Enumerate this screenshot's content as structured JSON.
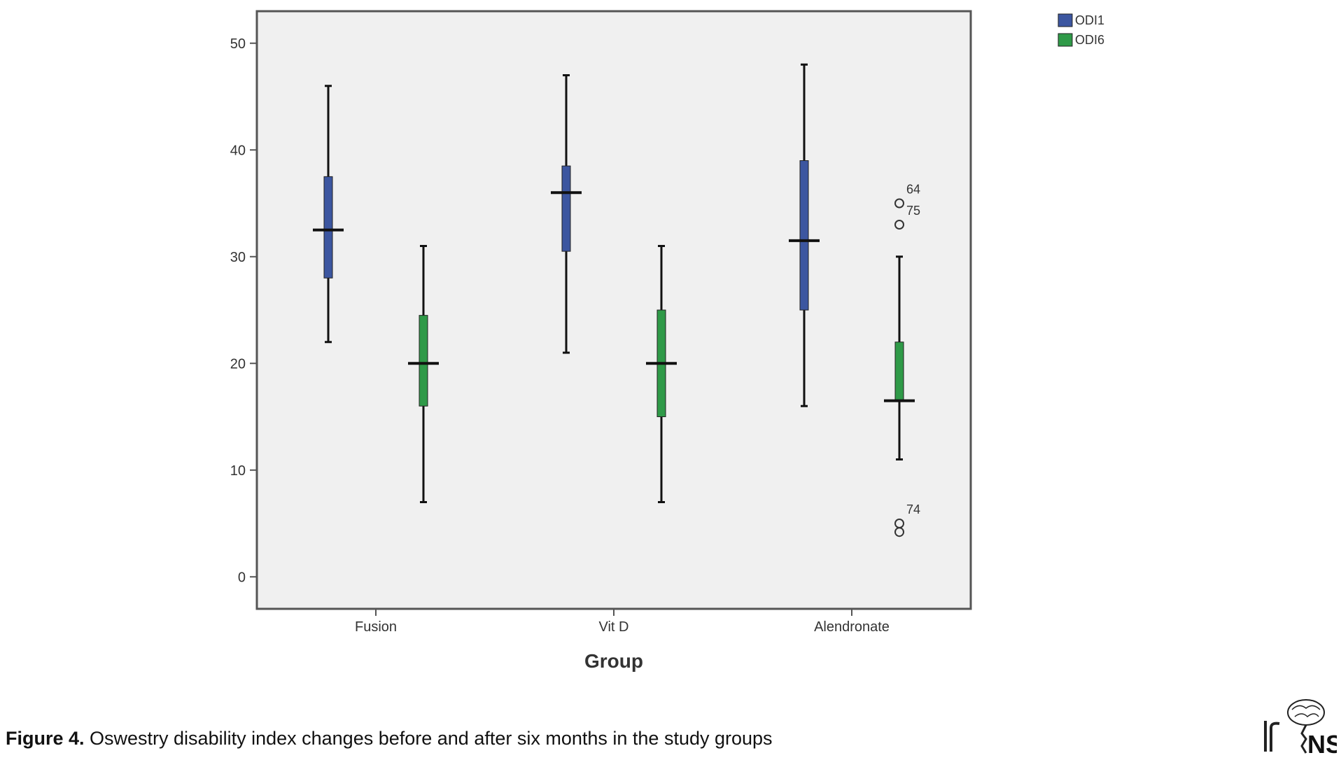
{
  "chart_data": {
    "type": "boxplot",
    "xlabel": "Group",
    "categories": [
      "Fusion",
      "Vit D",
      "Alendronate"
    ],
    "ylim": [
      -3,
      53
    ],
    "yticks": [
      0,
      10,
      20,
      30,
      40,
      50
    ],
    "grid": false,
    "legend_position": "top-right, outside plot",
    "series": [
      {
        "name": "ODI1",
        "color": "#3c56a0",
        "boxes": [
          {
            "min": 22,
            "q1": 28,
            "median": 32.5,
            "q3": 37.5,
            "max": 46
          },
          {
            "min": 21,
            "q1": 30.5,
            "median": 36,
            "q3": 38.5,
            "max": 47
          },
          {
            "min": 16,
            "q1": 25,
            "median": 31.5,
            "q3": 39,
            "max": 48
          }
        ]
      },
      {
        "name": "ODI6",
        "color": "#2f9a48",
        "boxes": [
          {
            "min": 7,
            "q1": 16,
            "median": 20,
            "q3": 24.5,
            "max": 31
          },
          {
            "min": 7,
            "q1": 15,
            "median": 20,
            "q3": 25,
            "max": 31
          },
          {
            "min": 11,
            "q1": 16.5,
            "median": 16.5,
            "q3": 22,
            "max": 30
          }
        ]
      }
    ],
    "outliers": [
      {
        "category": "Alendronate",
        "series": "ODI6",
        "value": 35,
        "label": "64"
      },
      {
        "category": "Alendronate",
        "series": "ODI6",
        "value": 33,
        "label": "75"
      },
      {
        "category": "Alendronate",
        "series": "ODI6",
        "value": 5,
        "label": "74"
      },
      {
        "category": "Alendronate",
        "series": "ODI6",
        "value": 4.2,
        "label": ""
      }
    ]
  },
  "caption": {
    "label": "Figure 4.",
    "text": " Oswestry disability index changes before and after six months in the study groups"
  },
  "logo": {
    "text": "IrJNS"
  },
  "colors": {
    "plot_background": "#f0f0f0",
    "frame": "#555555",
    "odi1": "#3c56a0",
    "odi6": "#2f9a48"
  }
}
